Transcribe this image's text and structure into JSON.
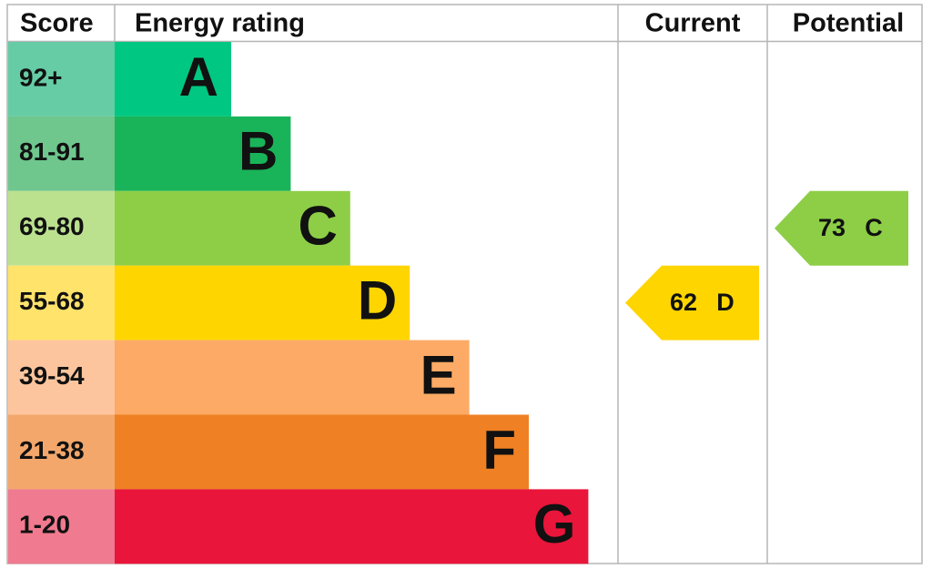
{
  "header": {
    "score": "Score",
    "energy_rating": "Energy rating",
    "current": "Current",
    "potential": "Potential"
  },
  "bands": [
    {
      "score": "92+",
      "letter": "A"
    },
    {
      "score": "81-91",
      "letter": "B"
    },
    {
      "score": "69-80",
      "letter": "C"
    },
    {
      "score": "55-68",
      "letter": "D"
    },
    {
      "score": "39-54",
      "letter": "E"
    },
    {
      "score": "21-38",
      "letter": "F"
    },
    {
      "score": "1-20",
      "letter": "G"
    }
  ],
  "current": {
    "value": 62,
    "letter": "D"
  },
  "potential": {
    "value": 73,
    "letter": "C"
  }
}
